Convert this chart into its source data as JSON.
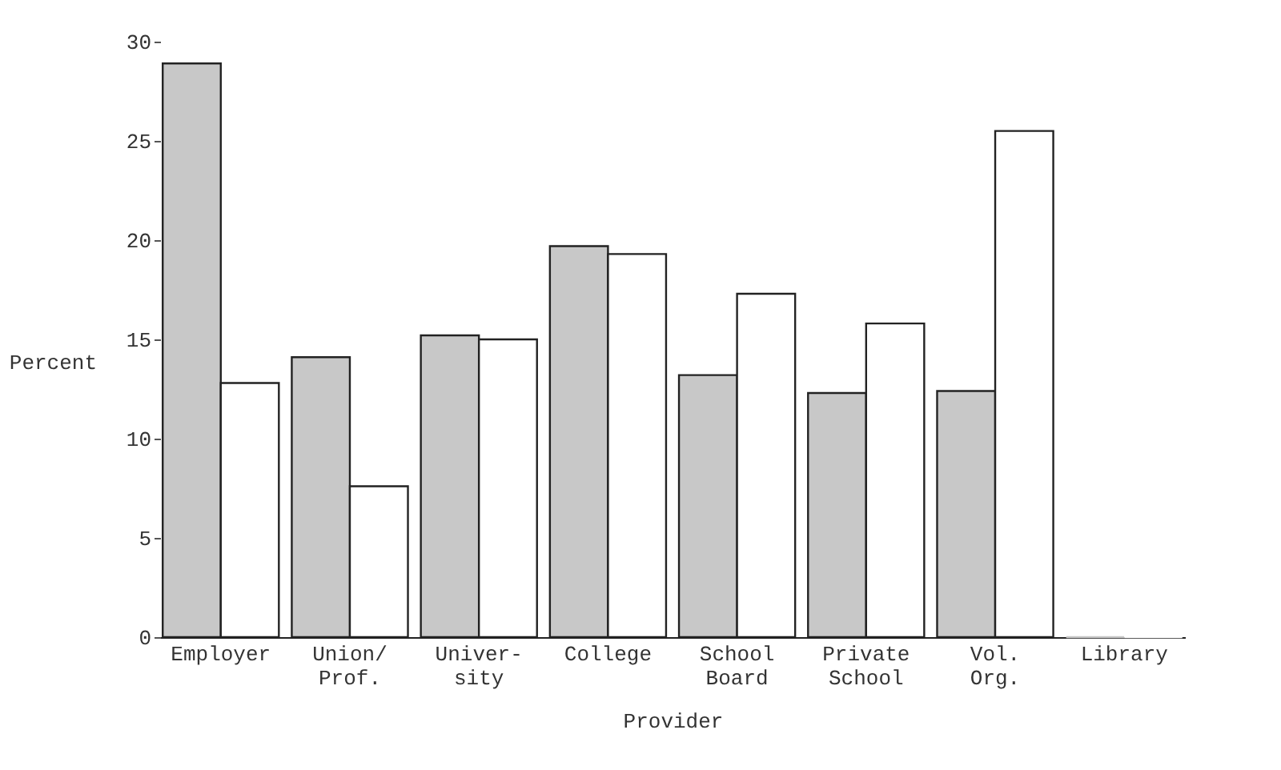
{
  "chart_data": {
    "type": "bar",
    "xlabel": "Provider",
    "ylabel": "Percent",
    "categories": [
      "Employer",
      "Union/\nProf.",
      "Univer-\nsity",
      "College",
      "School\nBoard",
      "Private\nSchool",
      "Vol.\nOrg.",
      "Library"
    ],
    "series": [
      {
        "color": "#c8c8c8",
        "values": [
          28.9,
          14.1,
          15.2,
          19.7,
          13.2,
          12.3,
          12.4,
          0
        ]
      },
      {
        "color": "#ffffff",
        "values": [
          12.8,
          7.6,
          15.0,
          19.3,
          17.3,
          15.8,
          25.5,
          0
        ]
      }
    ],
    "ylim": [
      0,
      30
    ],
    "yticks": [
      0,
      5,
      10,
      15,
      20,
      25,
      30
    ],
    "grid": false
  }
}
